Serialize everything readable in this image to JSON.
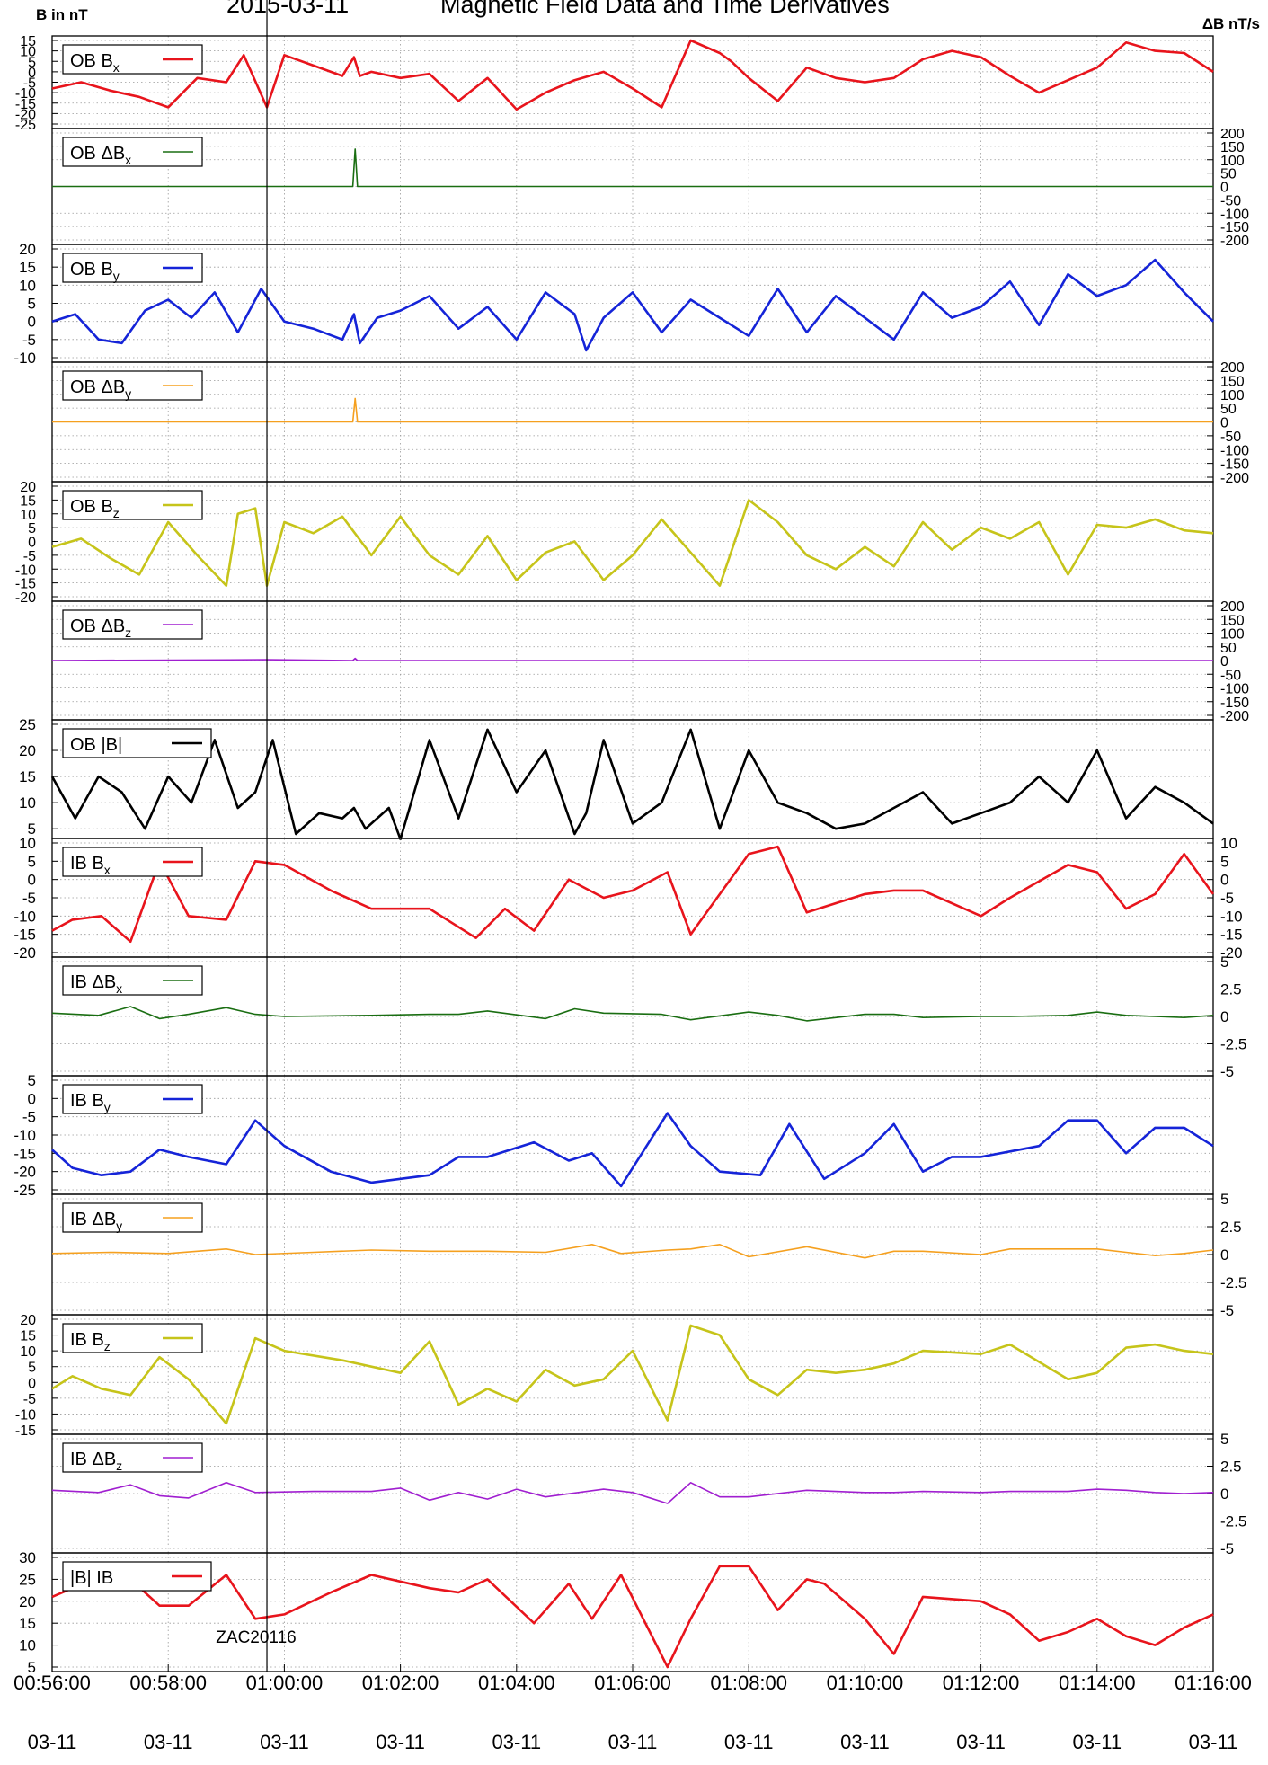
{
  "header": {
    "left_label": "B in nT",
    "date": "2015-03-11",
    "title": "Magnetic Field Data and Time Derivatives",
    "right_label": "ΔB nT/s"
  },
  "marker_label": "ZAC20116",
  "x_axis": {
    "ticks": [
      "00:56:00",
      "00:58:00",
      "01:00:00",
      "01:02:00",
      "01:04:00",
      "01:06:00",
      "01:08:00",
      "01:10:00",
      "01:12:00",
      "01:14:00",
      "01:16:00"
    ],
    "date_ticks": [
      "03-11",
      "03-11",
      "03-11",
      "03-11",
      "03-11",
      "03-11",
      "03-11",
      "03-11",
      "03-11",
      "03-11",
      "03-11"
    ],
    "range_minutes": [
      0,
      20
    ],
    "marker_minute": 3.7
  },
  "chart_data": [
    {
      "type": "line",
      "legend": {
        "base": "OB B",
        "sub": "x"
      },
      "color": "#e8141c",
      "axis": "left",
      "ylim": [
        -25,
        15
      ],
      "yticks": [
        "15",
        "10",
        "5",
        "0",
        "-5",
        "-10",
        "-15",
        "-20",
        "-25"
      ],
      "ytick_values": [
        15,
        10,
        5,
        0,
        -5,
        -10,
        -15,
        -20,
        -25
      ],
      "x": [
        0,
        0.5,
        1,
        1.5,
        2,
        2.5,
        3,
        3.3,
        3.7,
        4,
        4.5,
        5,
        5.2,
        5.3,
        5.5,
        6,
        6.5,
        7,
        7.5,
        8,
        8.5,
        9,
        9.5,
        10,
        10.5,
        11,
        11.5,
        11.7,
        12,
        12.5,
        13,
        13.5,
        14,
        14.5,
        15,
        15.5,
        16,
        16.5,
        17,
        17.5,
        18,
        18.5,
        19,
        19.5,
        20
      ],
      "y": [
        -8,
        -5,
        -9,
        -12,
        -17,
        -3,
        -5,
        8,
        -17,
        8,
        3,
        -2,
        7,
        -2,
        0,
        -3,
        -1,
        -14,
        -3,
        -18,
        -10,
        -4,
        0,
        -8,
        -17,
        15,
        9,
        5,
        -3,
        -14,
        2,
        -3,
        -5,
        -3,
        6,
        10,
        7,
        -2,
        -10,
        -4,
        2,
        14,
        10,
        9,
        0
      ]
    },
    {
      "type": "line",
      "legend": {
        "base": "OB ΔB",
        "sub": "x"
      },
      "color": "#1a6e12",
      "axis": "right",
      "ylim": [
        -200,
        200
      ],
      "yticks": [
        "200",
        "150",
        "100",
        "50",
        "0",
        "-50",
        "-100",
        "-150",
        "-200"
      ],
      "ytick_values": [
        200,
        150,
        100,
        50,
        0,
        -50,
        -100,
        -150,
        -200
      ],
      "x": [
        0,
        5.14,
        5.18,
        5.22,
        5.26,
        20
      ],
      "y": [
        0,
        0,
        0,
        140,
        0,
        0
      ]
    },
    {
      "type": "line",
      "legend": {
        "base": "OB B",
        "sub": "y"
      },
      "color": "#1524d8",
      "axis": "left",
      "ylim": [
        -10,
        20
      ],
      "yticks": [
        "20",
        "15",
        "10",
        "5",
        "0",
        "-5",
        "-10"
      ],
      "ytick_values": [
        20,
        15,
        10,
        5,
        0,
        -5,
        -10
      ],
      "x": [
        0,
        0.4,
        0.8,
        1.2,
        1.6,
        2,
        2.4,
        2.8,
        3.2,
        3.6,
        4,
        4.5,
        5,
        5.2,
        5.3,
        5.6,
        6,
        6.5,
        7,
        7.5,
        8,
        8.5,
        9,
        9.2,
        9.5,
        10,
        10.5,
        11,
        11.5,
        12,
        12.5,
        13,
        13.5,
        14,
        14.5,
        15,
        15.5,
        16,
        16.5,
        17,
        17.5,
        18,
        18.5,
        19,
        19.5,
        20
      ],
      "y": [
        0,
        2,
        -5,
        -6,
        3,
        6,
        1,
        8,
        -3,
        9,
        0,
        -2,
        -5,
        2,
        -6,
        1,
        3,
        7,
        -2,
        4,
        -5,
        8,
        2,
        -8,
        1,
        8,
        -3,
        6,
        1,
        -4,
        9,
        -3,
        7,
        1,
        -5,
        8,
        1,
        4,
        11,
        -1,
        13,
        7,
        10,
        17,
        8,
        0
      ]
    },
    {
      "type": "line",
      "legend": {
        "base": "OB ΔB",
        "sub": "y"
      },
      "color": "#f5a01f",
      "axis": "right",
      "ylim": [
        -200,
        200
      ],
      "yticks": [
        "200",
        "150",
        "100",
        "50",
        "0",
        "-50",
        "-100",
        "-150",
        "-200"
      ],
      "ytick_values": [
        200,
        150,
        100,
        50,
        0,
        -50,
        -100,
        -150,
        -200
      ],
      "x": [
        0,
        5.14,
        5.18,
        5.22,
        5.26,
        20
      ],
      "y": [
        0,
        0,
        0,
        85,
        0,
        0
      ]
    },
    {
      "type": "line",
      "legend": {
        "base": "OB B",
        "sub": "z"
      },
      "color": "#c6c41a",
      "axis": "left",
      "ylim": [
        -20,
        20
      ],
      "yticks": [
        "20",
        "15",
        "10",
        "5",
        "0",
        "-5",
        "-10",
        "-15",
        "-20"
      ],
      "ytick_values": [
        20,
        15,
        10,
        5,
        0,
        -5,
        -10,
        -15,
        -20
      ],
      "x": [
        0,
        0.5,
        1,
        1.5,
        2,
        2.5,
        3,
        3.2,
        3.5,
        3.7,
        4,
        4.5,
        5,
        5.5,
        6,
        6.5,
        7,
        7.5,
        8,
        8.5,
        9,
        9.5,
        10,
        10.5,
        11,
        11.5,
        12,
        12.5,
        13,
        13.5,
        14,
        14.5,
        15,
        15.5,
        16,
        16.5,
        17,
        17.5,
        18,
        18.5,
        19,
        19.5,
        20
      ],
      "y": [
        -2,
        1,
        -6,
        -12,
        7,
        -5,
        -16,
        10,
        12,
        -16,
        7,
        3,
        9,
        -5,
        9,
        -5,
        -12,
        2,
        -14,
        -4,
        0,
        -14,
        -5,
        8,
        -4,
        -16,
        15,
        7,
        -5,
        -10,
        -2,
        -9,
        7,
        -3,
        5,
        1,
        7,
        -12,
        6,
        5,
        8,
        4,
        3
      ]
    },
    {
      "type": "line",
      "legend": {
        "base": "OB ΔB",
        "sub": "z"
      },
      "color": "#a01fd0",
      "axis": "right",
      "ylim": [
        -200,
        200
      ],
      "yticks": [
        "200",
        "150",
        "100",
        "50",
        "0",
        "-50",
        "-100",
        "-150",
        "-200"
      ],
      "ytick_values": [
        200,
        150,
        100,
        50,
        0,
        -50,
        -100,
        -150,
        -200
      ],
      "x": [
        0,
        3.7,
        5.18,
        5.22,
        5.26,
        20
      ],
      "y": [
        0,
        3,
        0,
        8,
        0,
        0
      ]
    },
    {
      "type": "line",
      "legend": {
        "base": "OB |B|",
        "sub": ""
      },
      "color": "#000000",
      "axis": "left",
      "ylim": [
        4,
        25
      ],
      "yticks": [
        "25",
        "20",
        "15",
        "10",
        "5"
      ],
      "ytick_values": [
        25,
        20,
        15,
        10,
        5
      ],
      "x": [
        0,
        0.4,
        0.8,
        1.2,
        1.6,
        2,
        2.4,
        2.8,
        3.2,
        3.5,
        3.8,
        4.2,
        4.6,
        5,
        5.2,
        5.4,
        5.8,
        6,
        6.5,
        7,
        7.5,
        8,
        8.5,
        9,
        9.2,
        9.5,
        10,
        10.5,
        11,
        11.5,
        12,
        12.5,
        13,
        13.5,
        14,
        14.5,
        15,
        15.5,
        16,
        16.5,
        17,
        17.5,
        18,
        18.5,
        19,
        19.5,
        20
      ],
      "y": [
        15,
        7,
        15,
        12,
        5,
        15,
        10,
        22,
        9,
        12,
        22,
        4,
        8,
        7,
        9,
        5,
        9,
        3,
        22,
        7,
        24,
        12,
        20,
        4,
        8,
        22,
        6,
        10,
        24,
        5,
        20,
        10,
        8,
        5,
        6,
        9,
        12,
        6,
        8,
        10,
        15,
        10,
        20,
        7,
        13,
        10,
        6
      ]
    },
    {
      "type": "line",
      "legend": {
        "base": "IB B",
        "sub": "x"
      },
      "color": "#e8141c",
      "axis": "both",
      "ylim": [
        -20,
        10
      ],
      "yticks": [
        "10",
        "5",
        "0",
        "-5",
        "-10",
        "-15",
        "-20"
      ],
      "ytick_values": [
        10,
        5,
        0,
        -5,
        -10,
        -15,
        -20
      ],
      "x": [
        0,
        0.35,
        0.85,
        1.35,
        1.85,
        2.35,
        3.0,
        3.5,
        4.0,
        4.8,
        5.5,
        6.5,
        7.3,
        7.8,
        8.3,
        8.9,
        9.5,
        10.0,
        10.6,
        11.0,
        12.0,
        12.5,
        13.0,
        14.0,
        14.5,
        15.0,
        16.0,
        16.5,
        17.5,
        18.0,
        18.5,
        19.0,
        19.5,
        20.0
      ],
      "y": [
        -14,
        -11,
        -10,
        -17,
        5,
        -10,
        -11,
        5,
        4,
        -3,
        -8,
        -8,
        -16,
        -8,
        -14,
        0,
        -5,
        -3,
        2,
        -15,
        7,
        9,
        -9,
        -4,
        -3,
        -3,
        -10,
        -5,
        4,
        2,
        -8,
        -4,
        7,
        -4
      ]
    },
    {
      "type": "line",
      "legend": {
        "base": "IB ΔB",
        "sub": "x"
      },
      "color": "#1a6e12",
      "axis": "right",
      "ylim": [
        -5,
        5
      ],
      "yticks": [
        "5",
        "2.5",
        "0",
        "-2.5",
        "-5"
      ],
      "ytick_values": [
        5,
        2.5,
        0,
        -2.5,
        -5
      ],
      "x": [
        0,
        0.8,
        1.35,
        1.85,
        2.35,
        3.0,
        3.5,
        4.0,
        5.5,
        6.5,
        7.0,
        7.5,
        8.5,
        9.0,
        9.5,
        10.5,
        11.0,
        12.0,
        12.5,
        13.0,
        14.0,
        14.5,
        15.0,
        16.0,
        16.5,
        17.5,
        18.0,
        18.5,
        19.0,
        19.5,
        20.0
      ],
      "y": [
        0.3,
        0.1,
        0.9,
        -0.2,
        0.2,
        0.8,
        0.2,
        0,
        0.1,
        0.2,
        0.2,
        0.5,
        -0.2,
        0.7,
        0.3,
        0.2,
        -0.3,
        0.4,
        0.1,
        -0.4,
        0.2,
        0.2,
        -0.1,
        0,
        0,
        0.1,
        0.4,
        0.1,
        0,
        -0.1,
        0.1
      ]
    },
    {
      "type": "line",
      "legend": {
        "base": "IB B",
        "sub": "y"
      },
      "color": "#1524d8",
      "axis": "left",
      "ylim": [
        -25,
        5
      ],
      "yticks": [
        "5",
        "0",
        "-5",
        "-10",
        "-15",
        "-20",
        "-25"
      ],
      "ytick_values": [
        5,
        0,
        -5,
        -10,
        -15,
        -20,
        -25
      ],
      "x": [
        0,
        0.35,
        0.85,
        1.35,
        1.85,
        2.35,
        3.0,
        3.5,
        4.0,
        4.8,
        5.5,
        6.5,
        7.0,
        7.5,
        8.3,
        8.9,
        9.3,
        9.8,
        10.6,
        11.0,
        11.5,
        12.2,
        12.7,
        13.3,
        14.0,
        14.5,
        15.0,
        15.5,
        16.0,
        17.0,
        17.5,
        18.0,
        18.5,
        19.0,
        19.5,
        20.0
      ],
      "y": [
        -14,
        -19,
        -21,
        -20,
        -14,
        -16,
        -18,
        -6,
        -13,
        -20,
        -23,
        -21,
        -16,
        -16,
        -12,
        -17,
        -15,
        -24,
        -4,
        -13,
        -20,
        -21,
        -7,
        -22,
        -15,
        -7,
        -20,
        -16,
        -16,
        -13,
        -6,
        -6,
        -15,
        -8,
        -8,
        -13
      ]
    },
    {
      "type": "line",
      "legend": {
        "base": "IB ΔB",
        "sub": "y"
      },
      "color": "#f5a01f",
      "axis": "right",
      "ylim": [
        -5,
        5
      ],
      "yticks": [
        "5",
        "2.5",
        "0",
        "-2.5",
        "-5"
      ],
      "ytick_values": [
        5,
        2.5,
        0,
        -2.5,
        -5
      ],
      "x": [
        0,
        1.0,
        2.0,
        3.0,
        3.5,
        4.5,
        5.5,
        6.5,
        7.5,
        8.5,
        9.3,
        9.8,
        10.6,
        11.0,
        11.5,
        12.0,
        13.0,
        14.0,
        14.5,
        15.0,
        16.0,
        16.5,
        17.5,
        18.0,
        18.5,
        19.0,
        19.5,
        20.0
      ],
      "y": [
        0.1,
        0.2,
        0.1,
        0.5,
        0,
        0.2,
        0.4,
        0.3,
        0.3,
        0.2,
        0.9,
        0.1,
        0.4,
        0.5,
        0.9,
        -0.2,
        0.7,
        -0.3,
        0.3,
        0.3,
        0,
        0.5,
        0.5,
        0.5,
        0.2,
        -0.1,
        0.1,
        0.4
      ]
    },
    {
      "type": "line",
      "legend": {
        "base": "IB B",
        "sub": "z"
      },
      "color": "#c6c41a",
      "axis": "left",
      "ylim": [
        -15,
        20
      ],
      "yticks": [
        "20",
        "15",
        "10",
        "5",
        "0",
        "-5",
        "-10",
        "-15"
      ],
      "ytick_values": [
        20,
        15,
        10,
        5,
        0,
        -5,
        -10,
        -15
      ],
      "x": [
        0,
        0.35,
        0.85,
        1.35,
        1.85,
        2.35,
        3.0,
        3.5,
        4.0,
        5.0,
        6.0,
        6.5,
        7.0,
        7.5,
        8.0,
        8.5,
        9.0,
        9.5,
        10.0,
        10.6,
        11.0,
        11.5,
        12.0,
        12.5,
        13.0,
        13.5,
        14.0,
        14.5,
        15.0,
        16.0,
        16.5,
        17.5,
        18.0,
        18.5,
        19.0,
        19.5,
        20.0
      ],
      "y": [
        -2,
        2,
        -2,
        -4,
        8,
        1,
        -13,
        14,
        10,
        7,
        3,
        13,
        -7,
        -2,
        -6,
        4,
        -1,
        1,
        10,
        -12,
        18,
        15,
        1,
        -4,
        4,
        3,
        4,
        6,
        10,
        9,
        12,
        1,
        3,
        11,
        12,
        10,
        9
      ]
    },
    {
      "type": "line",
      "legend": {
        "base": "IB ΔB",
        "sub": "z"
      },
      "color": "#a01fd0",
      "axis": "right",
      "ylim": [
        -5,
        5
      ],
      "yticks": [
        "5",
        "2.5",
        "0",
        "-2.5",
        "-5"
      ],
      "ytick_values": [
        5,
        2.5,
        0,
        -2.5,
        -5
      ],
      "x": [
        0,
        0.8,
        1.35,
        1.85,
        2.35,
        3.0,
        3.5,
        4.5,
        5.5,
        6.0,
        6.5,
        7.0,
        7.5,
        8.0,
        8.5,
        9.5,
        10.0,
        10.6,
        11.0,
        11.5,
        12.0,
        13.0,
        14.0,
        14.5,
        15.0,
        16.0,
        16.5,
        17.5,
        18.0,
        18.5,
        19.0,
        19.5,
        20.0
      ],
      "y": [
        0.3,
        0.1,
        0.8,
        -0.2,
        -0.4,
        1.0,
        0.1,
        0.2,
        0.2,
        0.5,
        -0.6,
        0.1,
        -0.5,
        0.4,
        -0.3,
        0.4,
        0.1,
        -0.9,
        1.0,
        -0.3,
        -0.3,
        0.3,
        0.1,
        0.1,
        0.2,
        0.1,
        0.2,
        0.2,
        0.4,
        0.3,
        0.1,
        0,
        0.1
      ]
    },
    {
      "type": "line",
      "legend": {
        "base": "|B| IB",
        "sub": ""
      },
      "color": "#e8141c",
      "axis": "left",
      "ylim": [
        5,
        30
      ],
      "yticks": [
        "30",
        "25",
        "20",
        "15",
        "10",
        "5"
      ],
      "ytick_values": [
        30,
        25,
        20,
        15,
        10,
        5
      ],
      "x": [
        0,
        0.35,
        0.85,
        1.35,
        1.85,
        2.35,
        3.0,
        3.5,
        4.0,
        4.8,
        5.5,
        6.5,
        7.0,
        7.5,
        8.3,
        8.9,
        9.3,
        9.8,
        10.6,
        11.0,
        11.5,
        12.0,
        12.5,
        13.0,
        13.3,
        14.0,
        14.5,
        15.0,
        16.0,
        16.5,
        17.0,
        17.5,
        18.0,
        18.5,
        19.0,
        19.5,
        20.0
      ],
      "y": [
        21,
        23,
        24,
        25,
        19,
        19,
        26,
        16,
        17,
        22,
        26,
        23,
        22,
        25,
        15,
        24,
        16,
        26,
        5,
        16,
        28,
        28,
        18,
        25,
        24,
        16,
        8,
        21,
        20,
        17,
        11,
        13,
        16,
        12,
        10,
        14,
        17
      ]
    }
  ]
}
